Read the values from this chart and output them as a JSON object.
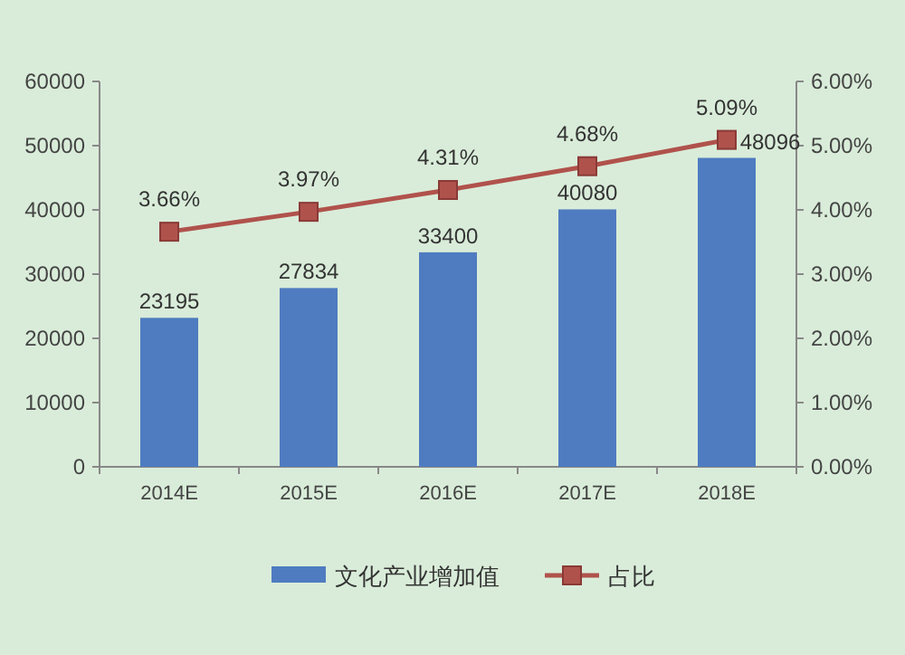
{
  "chart_data": {
    "type": "bar",
    "categories": [
      "2014E",
      "2015E",
      "2016E",
      "2017E",
      "2018E"
    ],
    "series": [
      {
        "name": "文化产业增加值",
        "color": "#4f7cc0",
        "values": [
          23195,
          27834,
          33400,
          40080,
          48096
        ],
        "value_labels": [
          "23195",
          "27834",
          "33400",
          "40080",
          "48096"
        ]
      },
      {
        "name": "占比",
        "type": "line",
        "axis": "y2",
        "color": "#b0524c",
        "marker": "square",
        "values": [
          3.66,
          3.97,
          4.31,
          4.68,
          5.09
        ],
        "value_labels": [
          "3.66%",
          "3.97%",
          "4.31%",
          "4.68%",
          "5.09%"
        ]
      }
    ],
    "ylim": [
      0,
      60000
    ],
    "yticks": [
      0,
      10000,
      20000,
      30000,
      40000,
      50000,
      60000
    ],
    "y2lim": [
      0,
      6
    ],
    "y2ticks": [
      {
        "value": 0,
        "label": "0.00%"
      },
      {
        "value": 1,
        "label": "1.00%"
      },
      {
        "value": 2,
        "label": "2.00%"
      },
      {
        "value": 3,
        "label": "3.00%"
      },
      {
        "value": 4,
        "label": "4.00%"
      },
      {
        "value": 5,
        "label": "5.00%"
      },
      {
        "value": 6,
        "label": "6.00%"
      }
    ],
    "legend": "bottom"
  }
}
